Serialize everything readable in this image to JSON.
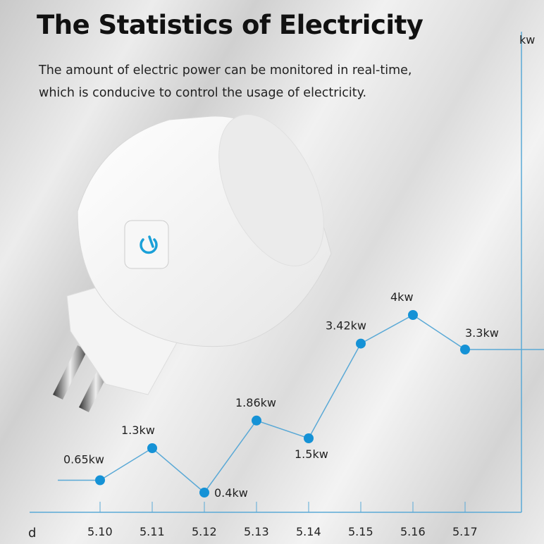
{
  "header": {
    "title": "The Statistics of Electricity",
    "subtitle_line1": "The amount of electric power can be monitored in real-time,",
    "subtitle_line2": "which is conducive to control the usage of electricity."
  },
  "product": {
    "icon": "power-button-icon",
    "accent": "#1aa0d8"
  },
  "chart_data": {
    "type": "line",
    "title": "",
    "xlabel": "d",
    "ylabel": "kw",
    "categories": [
      "5.10",
      "5.11",
      "5.12",
      "5.13",
      "5.14",
      "5.15",
      "5.16",
      "5.17"
    ],
    "values": [
      0.65,
      1.3,
      0.4,
      1.86,
      1.5,
      3.42,
      4,
      3.3
    ],
    "data_labels": [
      "0.65kw",
      "1.3kw",
      "0.4kw",
      "1.86kw",
      "1.5kw",
      "3.42kw",
      "4kw",
      "3.3kw"
    ],
    "line_color": "#5aa9d6",
    "marker_color": "#1592d6",
    "grid": false,
    "legend": "none"
  }
}
